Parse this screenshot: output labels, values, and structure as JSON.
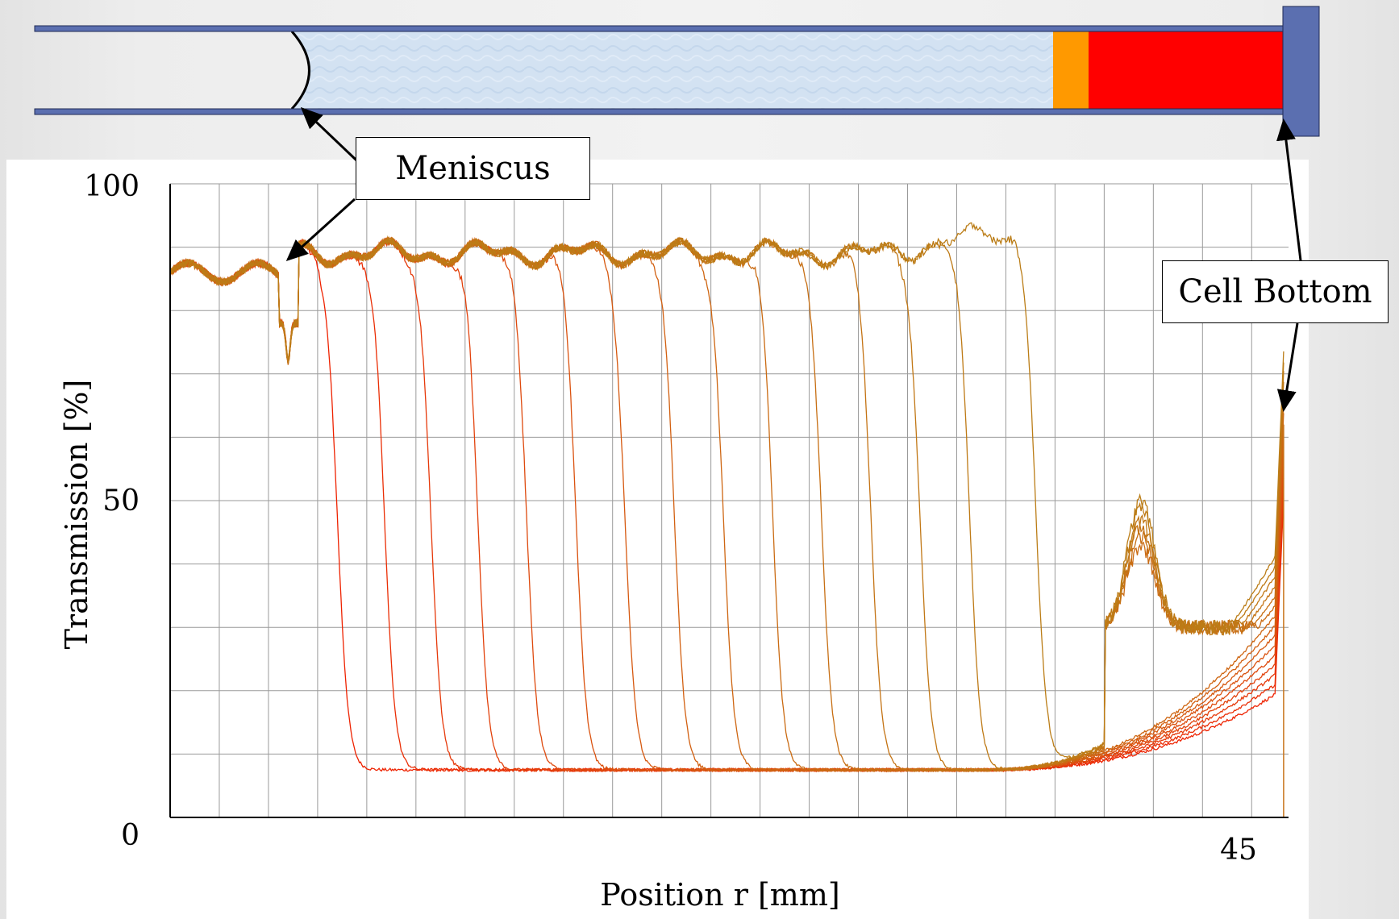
{
  "chart_data": {
    "type": "line",
    "title": "",
    "xlabel": "Position r [mm]",
    "ylabel": "Transmission [%]",
    "xlim": [
      0,
      45.5
    ],
    "ylim": [
      0,
      100
    ],
    "x_tick_labels": [
      "45"
    ],
    "y_tick_labels": [
      "0",
      "50",
      "100"
    ],
    "grid": true,
    "series_description": "Multiple transmission profiles; sedimentation boundary advances toward cell bottom",
    "meniscus_position": 4.8,
    "cell_bottom_position": 45.3,
    "plateau_level": 89,
    "sediment_level": 7.5,
    "boundary_positions": [
      6.8,
      8.7,
      10.6,
      12.5,
      14.5,
      16.5,
      18.5,
      20.5,
      22.5,
      24.5,
      26.5,
      28.5,
      30.5,
      32.5,
      35.2
    ],
    "profile_colors": [
      "#ee2200",
      "#ea2e05",
      "#e6390a",
      "#e2420c",
      "#de4a0e",
      "#da520f",
      "#d65910",
      "#d26011",
      "#ce6612",
      "#ca6b13",
      "#c76f14",
      "#c47314",
      "#c17715",
      "#be7a16",
      "#bb7d17"
    ]
  },
  "annotations": {
    "meniscus": "Meniscus",
    "cell_bottom": "Cell Bottom"
  },
  "diagram_colors": {
    "tube_wall": "#5b6fb0",
    "liquid": "#d3e2f2",
    "orange_layer": "#ff9900",
    "red_layer": "#ff0000"
  }
}
